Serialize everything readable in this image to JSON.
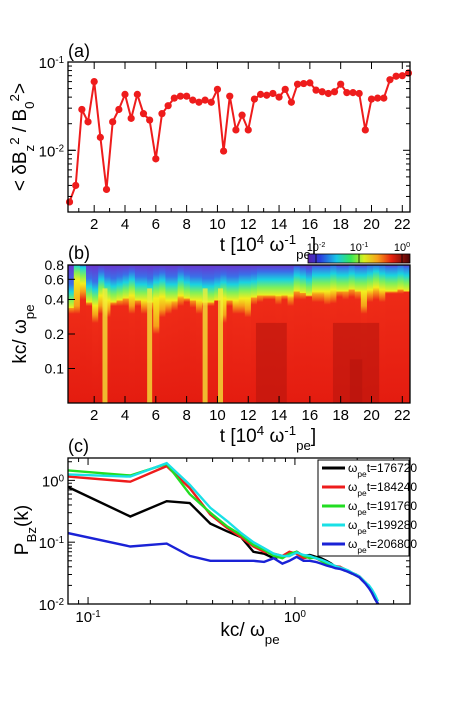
{
  "chart_data": [
    {
      "type": "line",
      "panel": "(a)",
      "ylabel_parts": [
        "< δB",
        "z",
        "2",
        " / B",
        "0",
        "2",
        ">"
      ],
      "xlabel_parts": [
        "t [10",
        "4",
        " ω",
        "-1",
        "pe",
        "]"
      ],
      "xlim": [
        0.3,
        22.5
      ],
      "ylim": [
        0.002,
        0.1
      ],
      "yscale": "log",
      "x_ticks": [
        "2",
        "4",
        "6",
        "8",
        "10",
        "12",
        "14",
        "16",
        "18",
        "20",
        "22"
      ],
      "y_ticks": [
        {
          "base": "10",
          "exp": "-2",
          "value": 0.01
        },
        {
          "base": "10",
          "exp": "-1",
          "value": 0.1
        }
      ],
      "color": "#ee1c1c",
      "series": [
        {
          "x": [
            0.4,
            0.8,
            1.2,
            1.6,
            2.0,
            2.4,
            2.8,
            3.2,
            3.6,
            4.0,
            4.4,
            4.8,
            5.2,
            5.6,
            6.0,
            6.4,
            6.8,
            7.2,
            7.6,
            8.0,
            8.4,
            8.8,
            9.2,
            9.6,
            10.0,
            10.4,
            10.8,
            11.2,
            11.6,
            12.0,
            12.4,
            12.8,
            13.2,
            13.6,
            14.0,
            14.4,
            14.8,
            15.2,
            15.6,
            16.0,
            16.4,
            16.8,
            17.2,
            17.6,
            18.0,
            18.4,
            18.8,
            19.2,
            19.6,
            20.0,
            20.4,
            20.8,
            21.2,
            21.6,
            22.0,
            22.4
          ],
          "y": [
            0.0026,
            0.004,
            0.029,
            0.021,
            0.06,
            0.014,
            0.0036,
            0.021,
            0.029,
            0.043,
            0.023,
            0.043,
            0.026,
            0.022,
            0.008,
            0.026,
            0.032,
            0.039,
            0.041,
            0.041,
            0.037,
            0.035,
            0.037,
            0.035,
            0.049,
            0.0098,
            0.041,
            0.017,
            0.025,
            0.017,
            0.038,
            0.043,
            0.042,
            0.044,
            0.04,
            0.049,
            0.035,
            0.056,
            0.057,
            0.058,
            0.048,
            0.046,
            0.044,
            0.046,
            0.056,
            0.045,
            0.045,
            0.044,
            0.017,
            0.038,
            0.039,
            0.039,
            0.063,
            0.069,
            0.07,
            0.075
          ]
        }
      ]
    },
    {
      "type": "heatmap",
      "panel": "(b)",
      "ylabel_parts": [
        "kc/ ω",
        "pe"
      ],
      "xlabel_parts": [
        "t [10",
        "4",
        " ω",
        "-1",
        "pe",
        "]"
      ],
      "xlim": [
        0.3,
        22.5
      ],
      "ylim": [
        0.05,
        0.8
      ],
      "x_ticks": [
        "2",
        "4",
        "6",
        "8",
        "10",
        "12",
        "14",
        "16",
        "18",
        "20",
        "22"
      ],
      "y_ticks": [
        "0.1",
        "0.2",
        "0.4",
        "0.6",
        "0.8"
      ],
      "colorbar": {
        "ticks": [
          {
            "base": "10",
            "exp": "-2"
          },
          {
            "base": "10",
            "exp": "-1"
          },
          {
            "base": "10",
            "exp": "0"
          }
        ],
        "range": [
          0.01,
          1
        ]
      },
      "cutoff_k": [
        0.43,
        0.75,
        0.7,
        0.48,
        0.45,
        0.55,
        0.5,
        0.48,
        0.5,
        0.52,
        0.55,
        0.5,
        0.5,
        0.48,
        0.52,
        0.54,
        0.5,
        0.5,
        0.55,
        0.52,
        0.5,
        0.5,
        0.48,
        0.48,
        0.5,
        0.52,
        0.5,
        0.5,
        0.52,
        0.52,
        0.53,
        0.55,
        0.55,
        0.55,
        0.55,
        0.55,
        0.55,
        0.6,
        0.58,
        0.55,
        0.6,
        0.6,
        0.6,
        0.62,
        0.6,
        0.6,
        0.62,
        0.6,
        0.6,
        0.62,
        0.65,
        0.62,
        0.6,
        0.6,
        0.62,
        0.6
      ],
      "red_top_k": [
        0.3,
        0.3,
        0.4,
        0.35,
        0.25,
        0.3,
        0.28,
        0.35,
        0.35,
        0.35,
        0.3,
        0.35,
        0.3,
        0.32,
        0.2,
        0.28,
        0.3,
        0.32,
        0.35,
        0.38,
        0.34,
        0.3,
        0.35,
        0.35,
        0.4,
        0.25,
        0.35,
        0.3,
        0.3,
        0.28,
        0.36,
        0.38,
        0.4,
        0.4,
        0.36,
        0.4,
        0.35,
        0.4,
        0.4,
        0.42,
        0.38,
        0.38,
        0.36,
        0.37,
        0.42,
        0.4,
        0.42,
        0.4,
        0.3,
        0.38,
        0.4,
        0.38,
        0.45,
        0.45,
        0.45,
        0.48
      ]
    },
    {
      "type": "line",
      "panel": "(c)",
      "xscale": "log",
      "yscale": "log",
      "xlim": [
        0.08,
        3.6
      ],
      "ylim": [
        0.01,
        2.3
      ],
      "xlabel_parts": [
        "kc/ ω",
        "pe"
      ],
      "ylabel_parts": [
        "P",
        "Bz",
        "(k)"
      ],
      "x_ticks": [
        {
          "base": "10",
          "exp": "-1",
          "value": 0.1
        },
        {
          "base": "10",
          "exp": "0",
          "value": 1
        }
      ],
      "y_ticks": [
        {
          "base": "10",
          "exp": "-2",
          "value": 0.01
        },
        {
          "base": "10",
          "exp": "-1",
          "value": 0.1
        },
        {
          "base": "10",
          "exp": "0",
          "value": 1
        }
      ],
      "legend_position": "top-right",
      "series": [
        {
          "legend_parts": [
            "ω",
            "pe",
            "t=176720"
          ],
          "color": "#000000",
          "x": [
            0.08,
            0.16,
            0.24,
            0.31,
            0.39,
            0.47,
            0.55,
            0.63,
            0.71,
            0.79,
            0.87,
            0.94,
            1.02,
            1.1,
            1.18,
            1.26,
            1.34,
            1.42,
            1.5,
            1.57,
            1.65,
            1.73,
            1.81,
            1.89,
            1.97,
            2.05,
            2.12,
            2.2,
            2.28,
            2.36,
            2.44,
            2.52
          ],
          "y": [
            0.78,
            0.26,
            0.46,
            0.43,
            0.2,
            0.15,
            0.12,
            0.07,
            0.065,
            0.055,
            0.06,
            0.06,
            0.07,
            0.06,
            0.062,
            0.058,
            0.055,
            0.05,
            0.045,
            0.04,
            0.04,
            0.035,
            0.034,
            0.031,
            0.03,
            0.027,
            0.024,
            0.022,
            0.019,
            0.015,
            0.012,
            0.01
          ]
        },
        {
          "legend_parts": [
            "ω",
            "pe",
            "t=184240"
          ],
          "color": "#ee1c1c",
          "x": [
            0.08,
            0.16,
            0.24,
            0.31,
            0.39,
            0.47,
            0.55,
            0.63,
            0.71,
            0.79,
            0.87,
            0.94,
            1.02,
            1.1,
            1.18,
            1.26,
            1.34,
            1.42,
            1.5,
            1.57,
            1.65,
            1.73,
            1.81,
            1.89,
            1.97,
            2.05,
            2.12,
            2.2,
            2.28,
            2.36,
            2.44,
            2.52
          ],
          "y": [
            1.15,
            0.95,
            1.7,
            0.75,
            0.28,
            0.17,
            0.12,
            0.085,
            0.07,
            0.065,
            0.06,
            0.07,
            0.065,
            0.055,
            0.058,
            0.055,
            0.05,
            0.047,
            0.043,
            0.041,
            0.04,
            0.037,
            0.034,
            0.032,
            0.03,
            0.028,
            0.025,
            0.022,
            0.019,
            0.016,
            0.013,
            0.011
          ]
        },
        {
          "legend_parts": [
            "ω",
            "pe",
            "t=191760"
          ],
          "color": "#22dd22",
          "x": [
            0.08,
            0.16,
            0.24,
            0.31,
            0.39,
            0.47,
            0.55,
            0.63,
            0.71,
            0.79,
            0.87,
            0.94,
            1.02,
            1.1,
            1.18,
            1.26,
            1.34,
            1.42,
            1.5,
            1.57,
            1.65,
            1.73,
            1.81,
            1.89,
            1.97,
            2.05,
            2.12,
            2.2,
            2.28,
            2.36,
            2.44,
            2.52
          ],
          "y": [
            1.45,
            1.2,
            1.85,
            0.6,
            0.3,
            0.18,
            0.13,
            0.09,
            0.075,
            0.06,
            0.055,
            0.065,
            0.07,
            0.06,
            0.055,
            0.056,
            0.05,
            0.045,
            0.042,
            0.04,
            0.038,
            0.036,
            0.033,
            0.031,
            0.029,
            0.027,
            0.025,
            0.022,
            0.019,
            0.016,
            0.013,
            0.011
          ]
        },
        {
          "legend_parts": [
            "ω",
            "pe",
            "t=199280"
          ],
          "color": "#19e0e6",
          "x": [
            0.08,
            0.16,
            0.24,
            0.31,
            0.39,
            0.47,
            0.55,
            0.63,
            0.71,
            0.79,
            0.87,
            0.94,
            1.02,
            1.1,
            1.18,
            1.26,
            1.34,
            1.42,
            1.5,
            1.57,
            1.65,
            1.73,
            1.81,
            1.89,
            1.97,
            2.05,
            2.12,
            2.2,
            2.28,
            2.36,
            2.44,
            2.52
          ],
          "y": [
            1.25,
            1.15,
            1.9,
            0.85,
            0.36,
            0.22,
            0.14,
            0.1,
            0.08,
            0.065,
            0.06,
            0.06,
            0.068,
            0.062,
            0.06,
            0.055,
            0.052,
            0.048,
            0.044,
            0.041,
            0.039,
            0.037,
            0.035,
            0.032,
            0.03,
            0.028,
            0.025,
            0.022,
            0.02,
            0.017,
            0.014,
            0.011
          ]
        },
        {
          "legend_parts": [
            "ω",
            "pe",
            "t=206800"
          ],
          "color": "#1a22d6",
          "x": [
            0.08,
            0.16,
            0.24,
            0.31,
            0.39,
            0.47,
            0.55,
            0.63,
            0.71,
            0.79,
            0.87,
            0.94,
            1.02,
            1.1,
            1.18,
            1.26,
            1.34,
            1.42,
            1.5,
            1.57,
            1.65,
            1.73,
            1.81,
            1.89,
            1.97,
            2.05,
            2.12,
            2.2,
            2.28,
            2.36,
            2.44,
            2.52
          ],
          "y": [
            0.14,
            0.085,
            0.095,
            0.06,
            0.05,
            0.05,
            0.05,
            0.05,
            0.048,
            0.055,
            0.045,
            0.05,
            0.058,
            0.05,
            0.05,
            0.048,
            0.045,
            0.042,
            0.04,
            0.038,
            0.037,
            0.035,
            0.033,
            0.031,
            0.029,
            0.027,
            0.024,
            0.021,
            0.018,
            0.015,
            0.012,
            0.01
          ]
        }
      ]
    }
  ]
}
